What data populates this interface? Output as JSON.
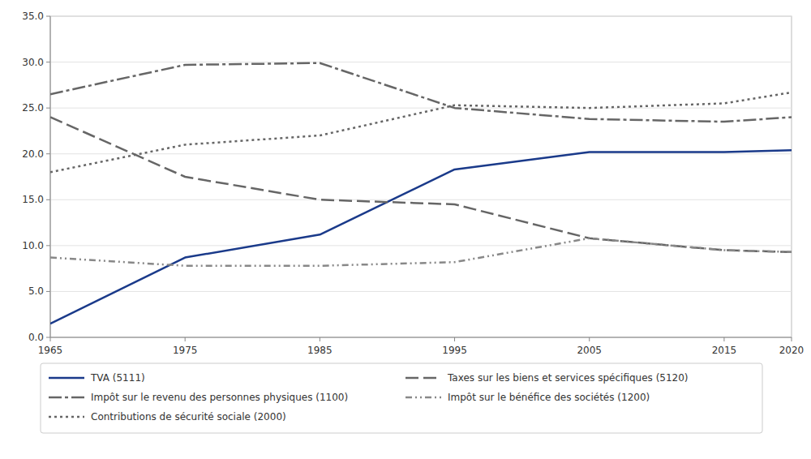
{
  "chart_data": {
    "type": "line",
    "x": [
      1965,
      1975,
      1985,
      1995,
      2005,
      2015,
      2020
    ],
    "series": [
      {
        "name": "TVA (5111)",
        "color": "#1a3a8a",
        "line_style": "solid",
        "values": [
          1.5,
          8.7,
          11.2,
          18.3,
          20.2,
          20.2,
          20.4
        ]
      },
      {
        "name": "Taxes sur les biens et services spécifiques (5120)",
        "color": "#666666",
        "line_style": "dashed",
        "values": [
          24.0,
          17.5,
          15.0,
          14.5,
          10.8,
          9.5,
          9.3
        ]
      },
      {
        "name": "Impôt sur le revenu des personnes physiques (1100)",
        "color": "#666666",
        "line_style": "dashdot",
        "values": [
          26.5,
          29.7,
          29.9,
          25.0,
          23.8,
          23.5,
          24.0
        ]
      },
      {
        "name": "Impôt sur le bénéfice des sociétés (1200)",
        "color": "#888888",
        "line_style": "dashdotdot",
        "values": [
          8.7,
          7.8,
          7.8,
          8.2,
          10.8,
          9.5,
          9.3
        ]
      },
      {
        "name": "Contributions de sécurité sociale (2000)",
        "color": "#666666",
        "line_style": "dotted",
        "values": [
          18.0,
          21.0,
          22.0,
          25.3,
          25.0,
          25.5,
          26.7
        ]
      }
    ],
    "xlim": [
      1965,
      2020
    ],
    "xticks": [
      1965,
      1975,
      1985,
      1995,
      2005,
      2015,
      2020
    ],
    "ylim": [
      0.0,
      35.0
    ],
    "yticks": [
      {
        "value": 0.0,
        "label": "0.0"
      },
      {
        "value": 5.0,
        "label": "5.0"
      },
      {
        "value": 10.0,
        "label": "10.0"
      },
      {
        "value": 15.0,
        "label": "15.0"
      },
      {
        "value": 20.0,
        "label": "20.0"
      },
      {
        "value": 25.0,
        "label": "25.0"
      },
      {
        "value": 30.0,
        "label": "30.0"
      },
      {
        "value": 35.0,
        "label": "35.0"
      }
    ],
    "grid": true,
    "legend": "bottom"
  }
}
